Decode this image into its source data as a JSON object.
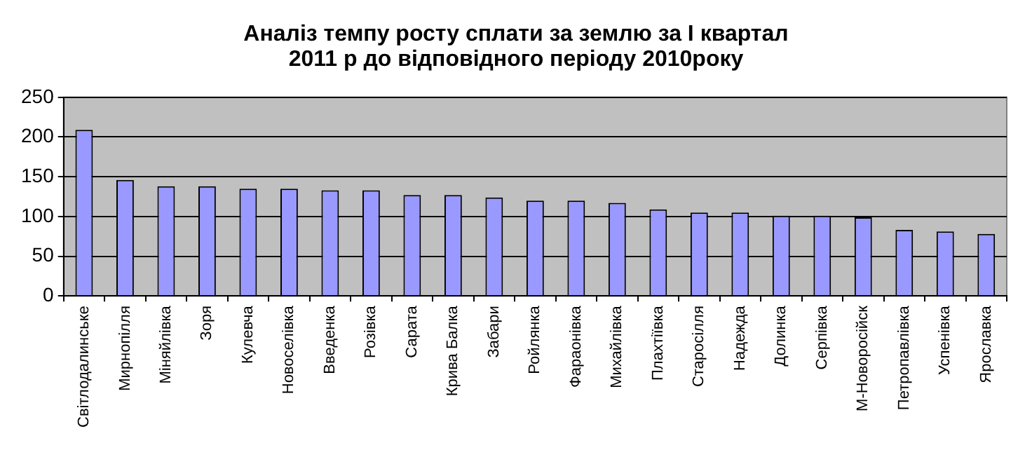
{
  "chart_data": {
    "type": "bar",
    "title": "Аналіз темпу росту сплати за землю за І квартал 2011 р до відповідного періоду 2010року",
    "categories": [
      "Світлодалинське",
      "Мирнопілля",
      "Міняйлівка",
      "Зоря",
      "Кулевча",
      "Новоселівка",
      "Введенка",
      "Розівка",
      "Сарата",
      "Крива Балка",
      "Забари",
      "Ройлянка",
      "Фараонівка",
      "Михайлівка",
      "Плахтіївка",
      "Старосілля",
      "Надежда",
      "Долинка",
      "Серпівка",
      "М-Новоросійск",
      "Петропавлівка",
      "Успенівка",
      "Ярославка"
    ],
    "values": [
      209,
      146,
      138,
      138,
      135,
      135,
      133,
      133,
      127,
      127,
      124,
      120,
      120,
      117,
      109,
      105,
      105,
      101,
      101,
      99,
      83,
      81,
      78
    ],
    "color": "#9999ff",
    "ylim": [
      0,
      250
    ],
    "yticks": [
      0,
      50,
      100,
      150,
      200,
      250
    ],
    "grid": "y"
  }
}
